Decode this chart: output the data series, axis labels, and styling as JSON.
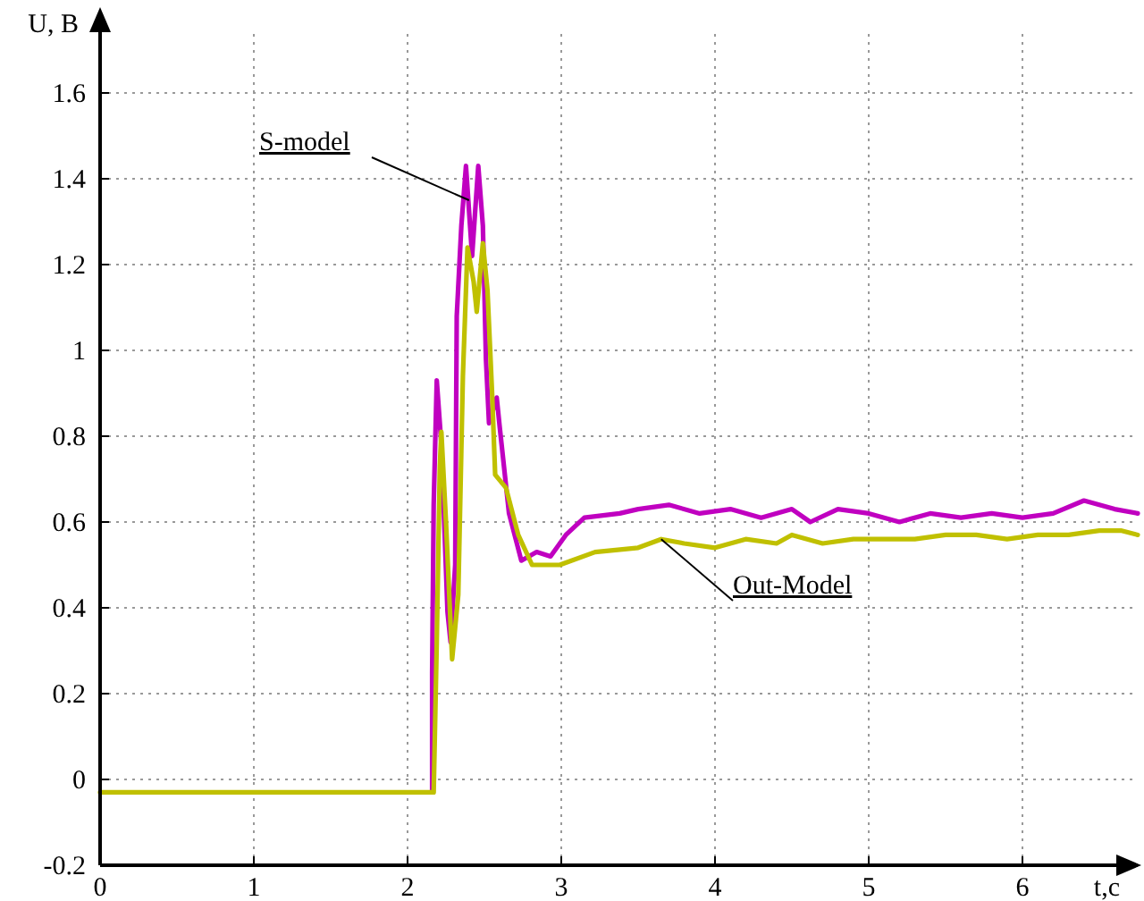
{
  "chart_data": {
    "type": "line",
    "xlabel": "t,c",
    "ylabel": "U, B",
    "xlim": [
      0,
      6.75
    ],
    "ylim": [
      -0.2,
      1.75
    ],
    "xticks": [
      0,
      1,
      2,
      3,
      4,
      5,
      6
    ],
    "yticks": [
      -0.2,
      0,
      0.2,
      0.4,
      0.6,
      0.8,
      1,
      1.2,
      1.4,
      1.6
    ],
    "grid": true,
    "marker": "none",
    "line_style": "solid",
    "series": [
      {
        "name": "S-model",
        "color": "#c000c0",
        "x": [
          2.16,
          2.16,
          2.17,
          2.19,
          2.22,
          2.26,
          2.28,
          2.31,
          2.32,
          2.35,
          2.38,
          2.42,
          2.46,
          2.49,
          2.51,
          2.53,
          2.58,
          2.6,
          2.66,
          2.74,
          2.84,
          2.93,
          3.03,
          3.15,
          3.38,
          3.5,
          3.7,
          3.9,
          4.1,
          4.3,
          4.5,
          4.62,
          4.8,
          5,
          5.2,
          5.4,
          5.6,
          5.8,
          6,
          6.2,
          6.4,
          6.6,
          6.75
        ],
        "values": [
          -0.03,
          0.25,
          0.64,
          0.93,
          0.78,
          0.39,
          0.32,
          0.5,
          1.08,
          1.29,
          1.43,
          1.22,
          1.43,
          1.29,
          0.98,
          0.83,
          0.89,
          0.82,
          0.62,
          0.51,
          0.53,
          0.52,
          0.57,
          0.61,
          0.62,
          0.63,
          0.64,
          0.62,
          0.63,
          0.61,
          0.63,
          0.6,
          0.63,
          0.62,
          0.6,
          0.62,
          0.61,
          0.62,
          0.61,
          0.62,
          0.65,
          0.63,
          0.62
        ]
      },
      {
        "name": "Out-Model",
        "color": "#c0c000",
        "x": [
          0,
          0.5,
          1,
          1.5,
          2,
          2.17,
          2.19,
          2.21,
          2.22,
          2.25,
          2.29,
          2.33,
          2.36,
          2.39,
          2.43,
          2.45,
          2.49,
          2.52,
          2.55,
          2.57,
          2.64,
          2.72,
          2.81,
          2.99,
          3.22,
          3.5,
          3.65,
          3.8,
          4,
          4.2,
          4.4,
          4.5,
          4.7,
          4.9,
          5.1,
          5.3,
          5.5,
          5.7,
          5.9,
          6.1,
          6.3,
          6.5,
          6.64,
          6.75
        ],
        "values": [
          -0.03,
          -0.03,
          -0.03,
          -0.03,
          -0.03,
          -0.03,
          0.32,
          0.73,
          0.81,
          0.6,
          0.28,
          0.43,
          0.94,
          1.24,
          1.16,
          1.09,
          1.25,
          1.14,
          0.9,
          0.71,
          0.68,
          0.57,
          0.5,
          0.5,
          0.53,
          0.54,
          0.56,
          0.55,
          0.54,
          0.56,
          0.55,
          0.57,
          0.55,
          0.56,
          0.56,
          0.56,
          0.57,
          0.57,
          0.56,
          0.57,
          0.57,
          0.58,
          0.58,
          0.57
        ]
      }
    ]
  }
}
